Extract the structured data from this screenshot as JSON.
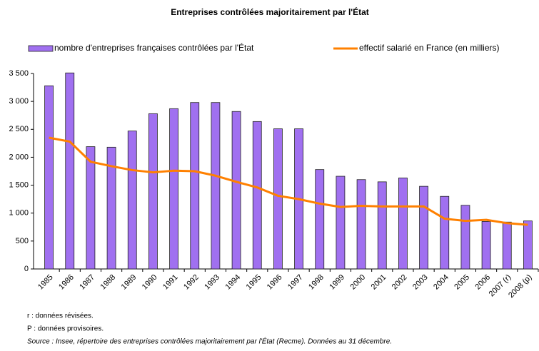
{
  "chart_data": {
    "type": "bar",
    "title": "Entreprises contrôlées majoritairement par l'État",
    "categories": [
      "1985",
      "1986",
      "1987",
      "1988",
      "1989",
      "1990",
      "1991",
      "1992",
      "1993",
      "1994",
      "1995",
      "1996",
      "1997",
      "1998",
      "1999",
      "2000",
      "2001",
      "2002",
      "2003",
      "2004",
      "2005",
      "2006",
      "2007 (r)",
      "2008 (p)"
    ],
    "series": [
      {
        "name": "nombre d'entreprises françaises contrôlées par l'État",
        "type": "bar",
        "color": "#a070f0",
        "values": [
          3280,
          3510,
          2190,
          2180,
          2470,
          2780,
          2870,
          2980,
          2980,
          2820,
          2640,
          2510,
          2510,
          1780,
          1660,
          1600,
          1560,
          1630,
          1480,
          1300,
          1140,
          850,
          840,
          860
        ]
      },
      {
        "name": "effectif salarié en France (en milliers)",
        "type": "line",
        "color": "#ff8000",
        "values": [
          2350,
          2280,
          1920,
          1840,
          1770,
          1730,
          1760,
          1750,
          1670,
          1560,
          1460,
          1310,
          1250,
          1170,
          1110,
          1130,
          1120,
          1120,
          1120,
          900,
          860,
          880,
          820,
          790
        ]
      }
    ],
    "ylim": [
      0,
      3500
    ],
    "yticks": [
      0,
      500,
      {
        "value": 1000,
        "label": "1 000"
      },
      {
        "value": 1500,
        "label": "1 500"
      },
      {
        "value": 2000,
        "label": "2 000"
      },
      {
        "value": 2500,
        "label": "2 500"
      },
      {
        "value": 3000,
        "label": "3 000"
      },
      {
        "value": 3500,
        "label": "3 500"
      }
    ],
    "grid": false,
    "legend": "top",
    "notes": [
      "r : données révisées.",
      "P : données provisoires.",
      "Source : Insee, répertoire des entreprises contrôlées majoritairement par l'État (Recme). Données au 31 décembre."
    ]
  }
}
